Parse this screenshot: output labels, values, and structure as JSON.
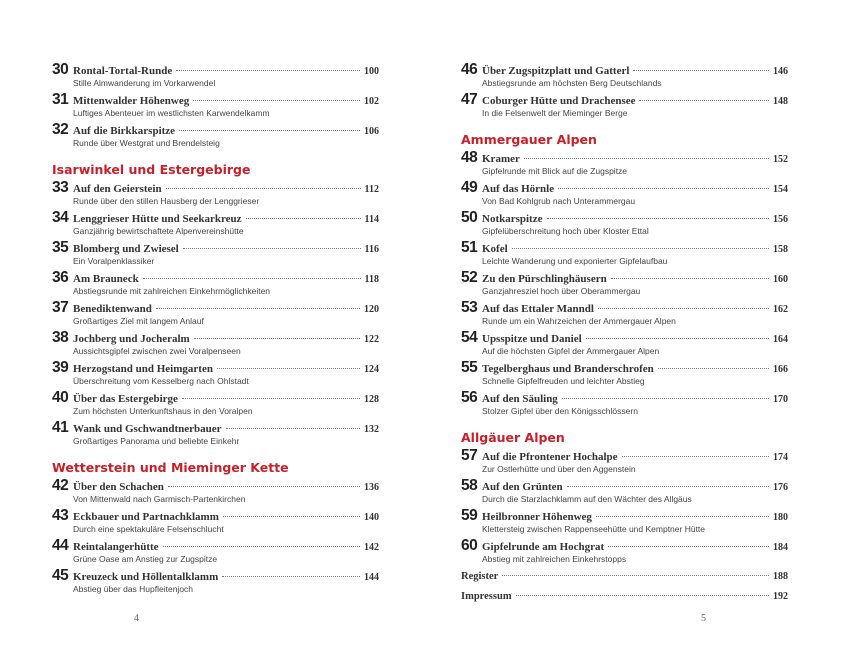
{
  "left_page": {
    "folio": "4",
    "blocks": [
      {
        "entries": [
          {
            "num": "30",
            "title": "Rontal-Tortal-Runde",
            "page": "100",
            "sub": "Stille Almwanderung im Vorkarwendel"
          },
          {
            "num": "31",
            "title": "Mittenwalder Höhenweg",
            "page": "102",
            "sub": "Luftiges Abenteuer im westlichsten Karwendelkamm"
          },
          {
            "num": "32",
            "title": "Auf die Birkkarspitze",
            "page": "106",
            "sub": "Runde über Westgrat und Brendelsteig"
          }
        ]
      },
      {
        "heading": "Isarwinkel und Estergebirge",
        "entries": [
          {
            "num": "33",
            "title": "Auf den Geierstein",
            "page": "112",
            "sub": "Runde über den stillen Hausberg der Lenggrieser"
          },
          {
            "num": "34",
            "title": "Lenggrieser Hütte und Seekarkreuz",
            "page": "114",
            "sub": "Ganzjährig bewirtschaftete Alpenvereinshütte"
          },
          {
            "num": "35",
            "title": "Blomberg und Zwiesel",
            "page": "116",
            "sub": "Ein Voralpenklassiker"
          },
          {
            "num": "36",
            "title": "Am Brauneck",
            "page": "118",
            "sub": "Abstiegsrunde mit zahlreichen Einkehrmöglichkeiten"
          },
          {
            "num": "37",
            "title": "Benediktenwand",
            "page": "120",
            "sub": "Großartiges Ziel mit langem Anlauf"
          },
          {
            "num": "38",
            "title": "Jochberg und Jocheralm",
            "page": "122",
            "sub": "Aussichtsgipfel zwischen zwei Voralpenseen"
          },
          {
            "num": "39",
            "title": "Herzogstand und Heimgarten",
            "page": "124",
            "sub": "Überschreitung vom Kesselberg nach Ohlstadt"
          },
          {
            "num": "40",
            "title": "Über das Estergebirge",
            "page": "128",
            "sub": "Zum höchsten Unterkunftshaus in den Voralpen"
          },
          {
            "num": "41",
            "title": "Wank und Gschwandtnerbauer",
            "page": "132",
            "sub": "Großartiges Panorama und beliebte Einkehr"
          }
        ]
      },
      {
        "heading": "Wetterstein und Mieminger Kette",
        "entries": [
          {
            "num": "42",
            "title": "Über den Schachen",
            "page": "136",
            "sub": "Von Mittenwald nach Garmisch-Partenkirchen"
          },
          {
            "num": "43",
            "title": "Eckbauer und Partnachklamm",
            "page": "140",
            "sub": "Durch eine spektakuläre Felsenschlucht"
          },
          {
            "num": "44",
            "title": "Reintalangerhütte",
            "page": "142",
            "sub": "Grüne Oase am Anstieg zur Zugspitze"
          },
          {
            "num": "45",
            "title": "Kreuzeck und Höllentalklamm",
            "page": "144",
            "sub": "Abstieg über das Hupfleitenjoch"
          }
        ]
      }
    ]
  },
  "right_page": {
    "folio": "5",
    "blocks": [
      {
        "entries": [
          {
            "num": "46",
            "title": "Über Zugspitzplatt und Gatterl",
            "page": "146",
            "sub": "Abstiegsrunde am höchsten Berg Deutschlands"
          },
          {
            "num": "47",
            "title": "Coburger Hütte und Drachensee",
            "page": "148",
            "sub": "In die Felsenwelt der Mieminger Berge"
          }
        ]
      },
      {
        "heading": "Ammergauer Alpen",
        "entries": [
          {
            "num": "48",
            "title": "Kramer",
            "page": "152",
            "sub": "Gipfelrunde mit Blick auf die Zugspitze"
          },
          {
            "num": "49",
            "title": "Auf das Hörnle",
            "page": "154",
            "sub": "Von Bad Kohlgrub nach Unterammergau"
          },
          {
            "num": "50",
            "title": "Notkarspitze",
            "page": "156",
            "sub": "Gipfelüberschreitung hoch über Kloster Ettal"
          },
          {
            "num": "51",
            "title": "Kofel",
            "page": "158",
            "sub": "Leichte Wanderung und exponierter Gipfelaufbau"
          },
          {
            "num": "52",
            "title": "Zu den Pürschlinghäusern",
            "page": "160",
            "sub": "Ganzjahresziel hoch über Oberammergau"
          },
          {
            "num": "53",
            "title": "Auf das Ettaler Manndl",
            "page": "162",
            "sub": "Runde um ein Wahrzeichen der Ammergauer Alpen"
          },
          {
            "num": "54",
            "title": "Upsspitze und Daniel",
            "page": "164",
            "sub": "Auf die höchsten Gipfel der Ammergauer Alpen"
          },
          {
            "num": "55",
            "title": "Tegelberghaus und Branderschrofen",
            "page": "166",
            "sub": "Schnelle Gipfelfreuden und leichter Abstieg"
          },
          {
            "num": "56",
            "title": "Auf den Säuling",
            "page": "170",
            "sub": "Stolzer Gipfel über den Königsschlössern"
          }
        ]
      },
      {
        "heading": "Allgäuer Alpen",
        "entries": [
          {
            "num": "57",
            "title": "Auf die Pfrontener Hochalpe",
            "page": "174",
            "sub": "Zur Ostlerhütte und über den Aggenstein"
          },
          {
            "num": "58",
            "title": "Auf den Grünten",
            "page": "176",
            "sub": "Durch die Starzlachklamm auf den Wächter des Allgäus"
          },
          {
            "num": "59",
            "title": "Heilbronner Höhenweg",
            "page": "180",
            "sub": "Klettersteig zwischen Rappenseehütte und Kemptner Hütte"
          },
          {
            "num": "60",
            "title": "Gipfelrunde am Hochgrat",
            "page": "184",
            "sub": "Abstieg mit zahlreichen Einkehrstopps"
          }
        ]
      }
    ],
    "extras": [
      {
        "title": "Register",
        "page": "188"
      },
      {
        "title": "Impressum",
        "page": "192"
      }
    ]
  }
}
